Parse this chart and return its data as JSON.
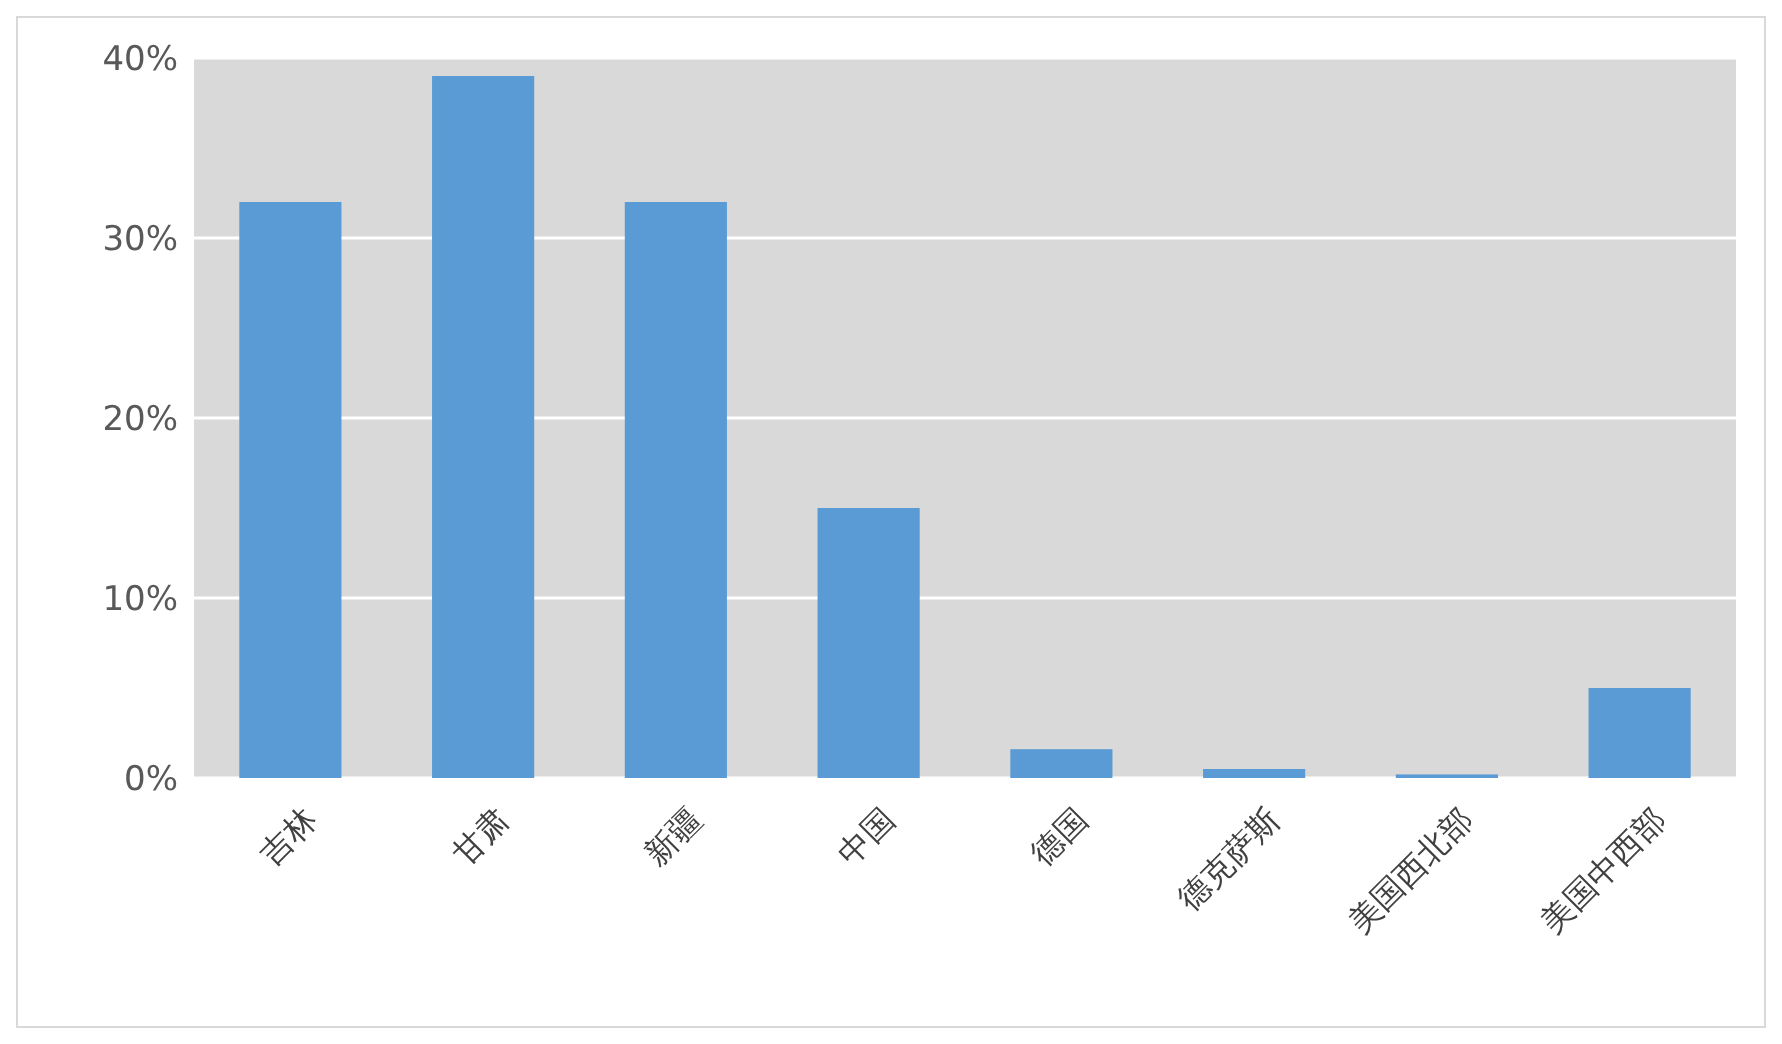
{
  "chart_data": {
    "type": "bar",
    "categories": [
      "吉林",
      "甘肃",
      "新疆",
      "中国",
      "德国",
      "德克萨斯",
      "美国西北部",
      "美国中西部"
    ],
    "values": [
      32,
      39,
      32,
      15,
      1.6,
      0.5,
      0.2,
      5
    ],
    "color": "#5b9bd5",
    "ylim": [
      0,
      40
    ],
    "yticks": [
      {
        "value": 0,
        "label": "0%"
      },
      {
        "value": 10,
        "label": "10%"
      },
      {
        "value": 20,
        "label": "20%"
      },
      {
        "value": 30,
        "label": "30%"
      },
      {
        "value": 40,
        "label": "40%"
      }
    ],
    "grid": "y"
  }
}
